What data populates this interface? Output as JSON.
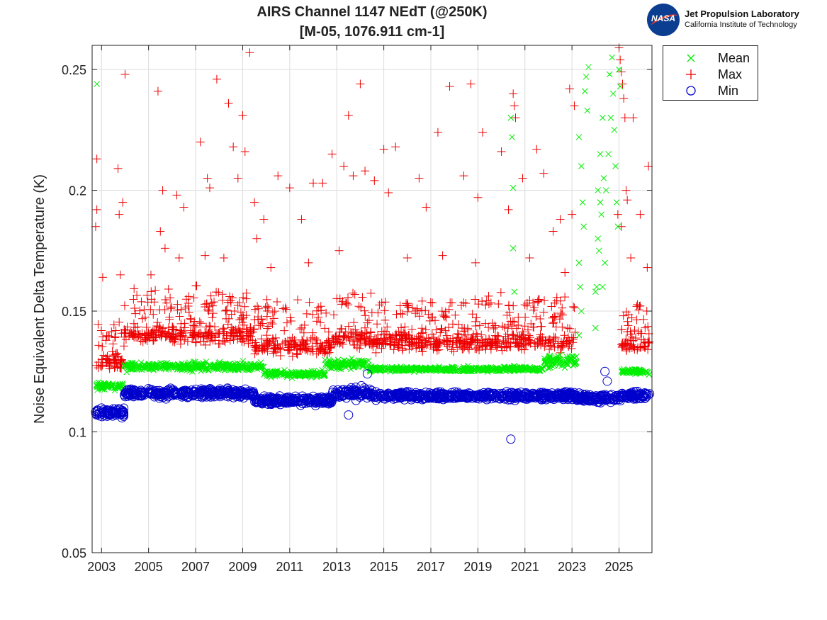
{
  "header": {
    "title_line1": "AIRS Channel 1147 NEdT (@250K)",
    "title_line2": "[M-05, 1076.911 cm-1]"
  },
  "logo": {
    "agency": "NASA",
    "lab_name": "Jet Propulsion Laboratory",
    "institute": "California Institute of Technology",
    "icon": "nasa-meatball-icon"
  },
  "legend": {
    "placement": "top-right, outside plot",
    "entries": [
      {
        "label": "Mean",
        "color": "#00ee00",
        "marker": "x"
      },
      {
        "label": "Max",
        "color": "#ee0000",
        "marker": "+"
      },
      {
        "label": "Min",
        "color": "#0000cc",
        "marker": "o"
      }
    ]
  },
  "chart_data": {
    "type": "scatter",
    "title": "AIRS Channel 1147 NEdT (@250K) [M-05, 1076.911 cm-1]",
    "xlabel": "",
    "ylabel": "Noise Equivalent Delta Temperature (K)",
    "xlim": [
      2002.6,
      2026.4
    ],
    "ylim": [
      0.05,
      0.26
    ],
    "xticks": [
      2003,
      2005,
      2007,
      2009,
      2011,
      2013,
      2015,
      2017,
      2019,
      2021,
      2023,
      2025
    ],
    "yticks": [
      0.05,
      0.1,
      0.15,
      0.2,
      0.25
    ],
    "ytick_labels": [
      "0.05",
      "0.1",
      "0.15",
      "0.2",
      "0.25"
    ],
    "grid": true,
    "series": [
      {
        "name": "Mean",
        "color": "#00ee00",
        "marker": "x",
        "segments": [
          {
            "x0": 2002.75,
            "x1": 2003.95,
            "level": 0.119,
            "spread": 0.002
          },
          {
            "x0": 2003.95,
            "x1": 2009.9,
            "level": 0.127,
            "spread": 0.0025
          },
          {
            "x0": 2009.9,
            "x1": 2012.5,
            "level": 0.124,
            "spread": 0.002
          },
          {
            "x0": 2012.5,
            "x1": 2014.4,
            "level": 0.128,
            "spread": 0.003
          },
          {
            "x0": 2014.4,
            "x1": 2021.8,
            "level": 0.126,
            "spread": 0.0015
          },
          {
            "x0": 2021.8,
            "x1": 2023.2,
            "level": 0.129,
            "spread": 0.004
          },
          {
            "x0": 2025.1,
            "x1": 2026.3,
            "level": 0.125,
            "spread": 0.0015
          }
        ],
        "points": [
          [
            2002.8,
            0.244
          ],
          [
            2020.4,
            0.23
          ],
          [
            2020.45,
            0.222
          ],
          [
            2020.5,
            0.201
          ],
          [
            2020.5,
            0.176
          ],
          [
            2020.55,
            0.158
          ],
          [
            2024.0,
            0.143
          ],
          [
            2023.3,
            0.222
          ],
          [
            2023.4,
            0.21
          ],
          [
            2023.45,
            0.195
          ],
          [
            2023.5,
            0.185
          ],
          [
            2023.55,
            0.241
          ],
          [
            2023.6,
            0.247
          ],
          [
            2023.7,
            0.251
          ],
          [
            2023.65,
            0.233
          ],
          [
            2023.3,
            0.17
          ],
          [
            2023.35,
            0.16
          ],
          [
            2023.4,
            0.15
          ],
          [
            2023.3,
            0.14
          ],
          [
            2024.1,
            0.2
          ],
          [
            2024.2,
            0.215
          ],
          [
            2024.3,
            0.23
          ],
          [
            2024.05,
            0.16
          ],
          [
            2024.15,
            0.175
          ],
          [
            2024.25,
            0.19
          ],
          [
            2024.35,
            0.205
          ],
          [
            2024.4,
            0.17
          ],
          [
            2024.6,
            0.248
          ],
          [
            2024.7,
            0.255
          ],
          [
            2024.75,
            0.24
          ],
          [
            2024.8,
            0.225
          ],
          [
            2024.85,
            0.21
          ],
          [
            2024.9,
            0.195
          ],
          [
            2024.95,
            0.185
          ],
          [
            2025.0,
            0.25
          ],
          [
            2024.65,
            0.23
          ],
          [
            2024.55,
            0.215
          ],
          [
            2024.45,
            0.2
          ],
          [
            2025.05,
            0.243
          ],
          [
            2024.0,
            0.158
          ],
          [
            2024.1,
            0.18
          ],
          [
            2024.2,
            0.195
          ],
          [
            2024.3,
            0.16
          ]
        ]
      },
      {
        "name": "Max",
        "color": "#ee0000",
        "marker": "+",
        "segments": [
          {
            "x0": 2002.75,
            "x1": 2003.95,
            "level": 0.129,
            "spread": 0.004
          },
          {
            "x0": 2003.95,
            "x1": 2009.5,
            "level": 0.14,
            "spread": 0.005
          },
          {
            "x0": 2009.5,
            "x1": 2012.8,
            "level": 0.135,
            "spread": 0.005
          },
          {
            "x0": 2012.8,
            "x1": 2014.5,
            "level": 0.139,
            "spread": 0.005
          },
          {
            "x0": 2014.5,
            "x1": 2023.2,
            "level": 0.137,
            "spread": 0.005
          },
          {
            "x0": 2025.1,
            "x1": 2026.3,
            "level": 0.136,
            "spread": 0.004
          }
        ],
        "points": [
          [
            2002.8,
            0.213
          ],
          [
            2002.8,
            0.192
          ],
          [
            2002.75,
            0.185
          ],
          [
            2003.05,
            0.164
          ],
          [
            2003.8,
            0.165
          ],
          [
            2004.0,
            0.248
          ],
          [
            2003.7,
            0.209
          ],
          [
            2003.75,
            0.19
          ],
          [
            2003.9,
            0.195
          ],
          [
            2005.4,
            0.241
          ],
          [
            2005.6,
            0.2
          ],
          [
            2005.5,
            0.183
          ],
          [
            2005.7,
            0.176
          ],
          [
            2006.2,
            0.198
          ],
          [
            2006.5,
            0.193
          ],
          [
            2007.2,
            0.22
          ],
          [
            2007.5,
            0.205
          ],
          [
            2007.6,
            0.201
          ],
          [
            2007.9,
            0.246
          ],
          [
            2007.4,
            0.173
          ],
          [
            2008.4,
            0.236
          ],
          [
            2008.6,
            0.218
          ],
          [
            2008.8,
            0.205
          ],
          [
            2009.0,
            0.231
          ],
          [
            2009.1,
            0.216
          ],
          [
            2009.3,
            0.257
          ],
          [
            2009.5,
            0.195
          ],
          [
            2009.6,
            0.18
          ],
          [
            2009.9,
            0.188
          ],
          [
            2010.5,
            0.206
          ],
          [
            2011.0,
            0.201
          ],
          [
            2011.5,
            0.188
          ],
          [
            2012.0,
            0.203
          ],
          [
            2012.4,
            0.203
          ],
          [
            2012.8,
            0.215
          ],
          [
            2013.3,
            0.21
          ],
          [
            2013.5,
            0.231
          ],
          [
            2013.7,
            0.206
          ],
          [
            2014.0,
            0.244
          ],
          [
            2014.2,
            0.208
          ],
          [
            2014.6,
            0.204
          ],
          [
            2015.0,
            0.217
          ],
          [
            2015.5,
            0.218
          ],
          [
            2015.2,
            0.199
          ],
          [
            2016.5,
            0.205
          ],
          [
            2016.8,
            0.193
          ],
          [
            2017.3,
            0.224
          ],
          [
            2017.8,
            0.243
          ],
          [
            2018.4,
            0.206
          ],
          [
            2018.7,
            0.244
          ],
          [
            2019.2,
            0.224
          ],
          [
            2019.0,
            0.197
          ],
          [
            2020.0,
            0.216
          ],
          [
            2020.5,
            0.24
          ],
          [
            2020.55,
            0.235
          ],
          [
            2020.6,
            0.23
          ],
          [
            2020.9,
            0.205
          ],
          [
            2020.3,
            0.192
          ],
          [
            2021.5,
            0.217
          ],
          [
            2021.8,
            0.207
          ],
          [
            2022.2,
            0.183
          ],
          [
            2022.5,
            0.188
          ],
          [
            2022.9,
            0.242
          ],
          [
            2023.1,
            0.235
          ],
          [
            2023.0,
            0.19
          ],
          [
            2025.0,
            0.259
          ],
          [
            2025.05,
            0.254
          ],
          [
            2025.1,
            0.249
          ],
          [
            2025.15,
            0.244
          ],
          [
            2025.2,
            0.238
          ],
          [
            2025.25,
            0.23
          ],
          [
            2025.3,
            0.2
          ],
          [
            2025.35,
            0.196
          ],
          [
            2025.6,
            0.23
          ],
          [
            2025.5,
            0.172
          ],
          [
            2025.9,
            0.19
          ],
          [
            2026.25,
            0.21
          ],
          [
            2026.2,
            0.168
          ],
          [
            2025.1,
            0.185
          ],
          [
            2024.95,
            0.19
          ],
          [
            2005.1,
            0.165
          ],
          [
            2006.3,
            0.172
          ],
          [
            2008.2,
            0.172
          ],
          [
            2010.2,
            0.168
          ],
          [
            2011.8,
            0.17
          ],
          [
            2013.1,
            0.175
          ],
          [
            2016.0,
            0.172
          ],
          [
            2017.5,
            0.173
          ],
          [
            2018.9,
            0.17
          ],
          [
            2021.2,
            0.172
          ],
          [
            2022.7,
            0.166
          ]
        ]
      },
      {
        "name": "Min",
        "color": "#0000cc",
        "marker": "o",
        "segments": [
          {
            "x0": 2002.75,
            "x1": 2003.95,
            "level": 0.108,
            "spread": 0.0025
          },
          {
            "x0": 2003.95,
            "x1": 2009.5,
            "level": 0.116,
            "spread": 0.0025
          },
          {
            "x0": 2009.5,
            "x1": 2012.8,
            "level": 0.113,
            "spread": 0.0025
          },
          {
            "x0": 2012.8,
            "x1": 2014.5,
            "level": 0.116,
            "spread": 0.0035
          },
          {
            "x0": 2014.5,
            "x1": 2023.2,
            "level": 0.115,
            "spread": 0.0022
          },
          {
            "x0": 2023.2,
            "x1": 2025.1,
            "level": 0.114,
            "spread": 0.0025
          },
          {
            "x0": 2025.1,
            "x1": 2026.3,
            "level": 0.115,
            "spread": 0.0022
          }
        ],
        "points": [
          [
            2020.4,
            0.097
          ],
          [
            2013.5,
            0.107
          ],
          [
            2014.3,
            0.124
          ],
          [
            2024.4,
            0.125
          ],
          [
            2024.5,
            0.121
          ]
        ]
      }
    ]
  }
}
